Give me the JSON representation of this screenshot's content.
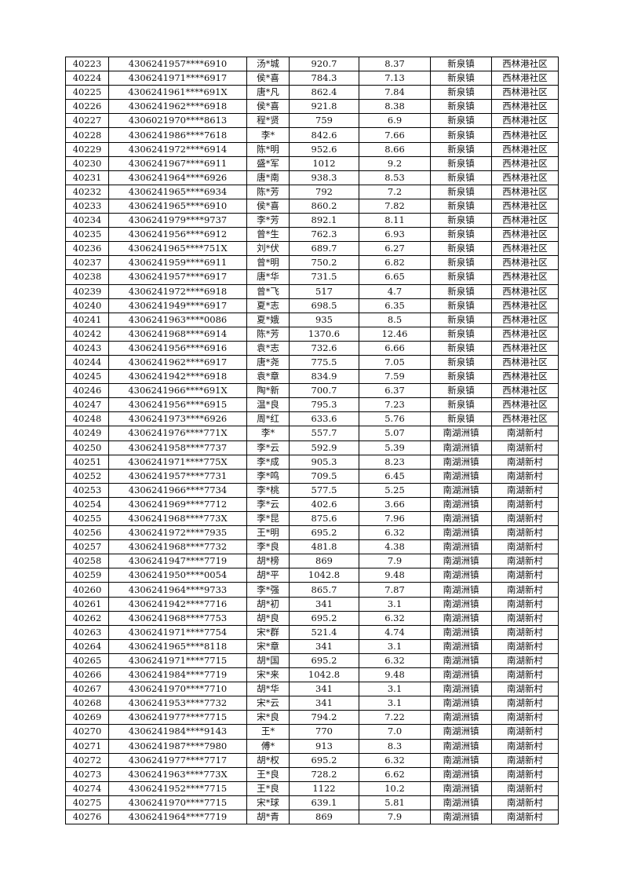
{
  "table": {
    "rows": [
      [
        "40223",
        "4306241957****6910",
        "汤*城",
        "920.7",
        "8.37",
        "新泉镇",
        "西林港社区"
      ],
      [
        "40224",
        "4306241971****6917",
        "侯*喜",
        "784.3",
        "7.13",
        "新泉镇",
        "西林港社区"
      ],
      [
        "40225",
        "4306241961****691X",
        "唐*凡",
        "862.4",
        "7.84",
        "新泉镇",
        "西林港社区"
      ],
      [
        "40226",
        "4306241962****6918",
        "侯*喜",
        "921.8",
        "8.38",
        "新泉镇",
        "西林港社区"
      ],
      [
        "40227",
        "4306021970****8613",
        "程*贤",
        "759",
        "6.9",
        "新泉镇",
        "西林港社区"
      ],
      [
        "40228",
        "4306241986****7618",
        "李*",
        "842.6",
        "7.66",
        "新泉镇",
        "西林港社区"
      ],
      [
        "40229",
        "4306241972****6914",
        "陈*明",
        "952.6",
        "8.66",
        "新泉镇",
        "西林港社区"
      ],
      [
        "40230",
        "4306241967****6911",
        "盛*军",
        "1012",
        "9.2",
        "新泉镇",
        "西林港社区"
      ],
      [
        "40231",
        "4306241964****6926",
        "唐*南",
        "938.3",
        "8.53",
        "新泉镇",
        "西林港社区"
      ],
      [
        "40232",
        "4306241965****6934",
        "陈*芳",
        "792",
        "7.2",
        "新泉镇",
        "西林港社区"
      ],
      [
        "40233",
        "4306241965****6910",
        "侯*喜",
        "860.2",
        "7.82",
        "新泉镇",
        "西林港社区"
      ],
      [
        "40234",
        "4306241979****9737",
        "李*芳",
        "892.1",
        "8.11",
        "新泉镇",
        "西林港社区"
      ],
      [
        "40235",
        "4306241956****6912",
        "曾*生",
        "762.3",
        "6.93",
        "新泉镇",
        "西林港社区"
      ],
      [
        "40236",
        "4306241965****751X",
        "刘*伏",
        "689.7",
        "6.27",
        "新泉镇",
        "西林港社区"
      ],
      [
        "40237",
        "4306241959****6911",
        "曾*明",
        "750.2",
        "6.82",
        "新泉镇",
        "西林港社区"
      ],
      [
        "40238",
        "4306241957****6917",
        "唐*华",
        "731.5",
        "6.65",
        "新泉镇",
        "西林港社区"
      ],
      [
        "40239",
        "4306241972****6918",
        "曾*飞",
        "517",
        "4.7",
        "新泉镇",
        "西林港社区"
      ],
      [
        "40240",
        "4306241949****6917",
        "夏*志",
        "698.5",
        "6.35",
        "新泉镇",
        "西林港社区"
      ],
      [
        "40241",
        "4306241963****0086",
        "夏*娥",
        "935",
        "8.5",
        "新泉镇",
        "西林港社区"
      ],
      [
        "40242",
        "4306241968****6914",
        "陈*芳",
        "1370.6",
        "12.46",
        "新泉镇",
        "西林港社区"
      ],
      [
        "40243",
        "4306241956****6916",
        "袁*志",
        "732.6",
        "6.66",
        "新泉镇",
        "西林港社区"
      ],
      [
        "40244",
        "4306241962****6917",
        "唐*尧",
        "775.5",
        "7.05",
        "新泉镇",
        "西林港社区"
      ],
      [
        "40245",
        "4306241942****6918",
        "袁*章",
        "834.9",
        "7.59",
        "新泉镇",
        "西林港社区"
      ],
      [
        "40246",
        "4306241966****691X",
        "陶*新",
        "700.7",
        "6.37",
        "新泉镇",
        "西林港社区"
      ],
      [
        "40247",
        "4306241956****6915",
        "温*良",
        "795.3",
        "7.23",
        "新泉镇",
        "西林港社区"
      ],
      [
        "40248",
        "4306241973****6926",
        "周*红",
        "633.6",
        "5.76",
        "新泉镇",
        "西林港社区"
      ],
      [
        "40249",
        "4306241976****771X",
        "李*",
        "557.7",
        "5.07",
        "南湖洲镇",
        "南湖新村"
      ],
      [
        "40250",
        "4306241958****7737",
        "李*云",
        "592.9",
        "5.39",
        "南湖洲镇",
        "南湖新村"
      ],
      [
        "40251",
        "4306241971****775X",
        "李*成",
        "905.3",
        "8.23",
        "南湖洲镇",
        "南湖新村"
      ],
      [
        "40252",
        "4306241957****7731",
        "李*鸣",
        "709.5",
        "6.45",
        "南湖洲镇",
        "南湖新村"
      ],
      [
        "40253",
        "4306241966****7734",
        "李*桃",
        "577.5",
        "5.25",
        "南湖洲镇",
        "南湖新村"
      ],
      [
        "40254",
        "4306241969****7712",
        "李*云",
        "402.6",
        "3.66",
        "南湖洲镇",
        "南湖新村"
      ],
      [
        "40255",
        "4306241968****773X",
        "李*昆",
        "875.6",
        "7.96",
        "南湖洲镇",
        "南湖新村"
      ],
      [
        "40256",
        "4306241972****7935",
        "王*明",
        "695.2",
        "6.32",
        "南湖洲镇",
        "南湖新村"
      ],
      [
        "40257",
        "4306241968****7732",
        "李*良",
        "481.8",
        "4.38",
        "南湖洲镇",
        "南湖新村"
      ],
      [
        "40258",
        "4306241947****7719",
        "胡*榜",
        "869",
        "7.9",
        "南湖洲镇",
        "南湖新村"
      ],
      [
        "40259",
        "4306241950****0054",
        "胡*平",
        "1042.8",
        "9.48",
        "南湖洲镇",
        "南湖新村"
      ],
      [
        "40260",
        "4306241964****9733",
        "李*强",
        "865.7",
        "7.87",
        "南湖洲镇",
        "南湖新村"
      ],
      [
        "40261",
        "4306241942****7716",
        "胡*初",
        "341",
        "3.1",
        "南湖洲镇",
        "南湖新村"
      ],
      [
        "40262",
        "4306241968****7753",
        "胡*良",
        "695.2",
        "6.32",
        "南湖洲镇",
        "南湖新村"
      ],
      [
        "40263",
        "4306241971****7754",
        "宋*群",
        "521.4",
        "4.74",
        "南湖洲镇",
        "南湖新村"
      ],
      [
        "40264",
        "4306241965****8118",
        "宋*章",
        "341",
        "3.1",
        "南湖洲镇",
        "南湖新村"
      ],
      [
        "40265",
        "4306241971****7715",
        "胡*国",
        "695.2",
        "6.32",
        "南湖洲镇",
        "南湖新村"
      ],
      [
        "40266",
        "4306241984****7719",
        "宋*来",
        "1042.8",
        "9.48",
        "南湖洲镇",
        "南湖新村"
      ],
      [
        "40267",
        "4306241970****7710",
        "胡*华",
        "341",
        "3.1",
        "南湖洲镇",
        "南湖新村"
      ],
      [
        "40268",
        "4306241953****7732",
        "宋*云",
        "341",
        "3.1",
        "南湖洲镇",
        "南湖新村"
      ],
      [
        "40269",
        "4306241977****7715",
        "宋*良",
        "794.2",
        "7.22",
        "南湖洲镇",
        "南湖新村"
      ],
      [
        "40270",
        "4306241984****9143",
        "王*",
        "770",
        "7.0",
        "南湖洲镇",
        "南湖新村"
      ],
      [
        "40271",
        "4306241987****7980",
        "傅*",
        "913",
        "8.3",
        "南湖洲镇",
        "南湖新村"
      ],
      [
        "40272",
        "4306241977****7717",
        "胡*权",
        "695.2",
        "6.32",
        "南湖洲镇",
        "南湖新村"
      ],
      [
        "40273",
        "4306241963****773X",
        "王*良",
        "728.2",
        "6.62",
        "南湖洲镇",
        "南湖新村"
      ],
      [
        "40274",
        "4306241952****7715",
        "王*良",
        "1122",
        "10.2",
        "南湖洲镇",
        "南湖新村"
      ],
      [
        "40275",
        "4306241970****7715",
        "宋*球",
        "639.1",
        "5.81",
        "南湖洲镇",
        "南湖新村"
      ],
      [
        "40276",
        "4306241964****7719",
        "胡*青",
        "869",
        "7.9",
        "南湖洲镇",
        "南湖新村"
      ]
    ]
  }
}
